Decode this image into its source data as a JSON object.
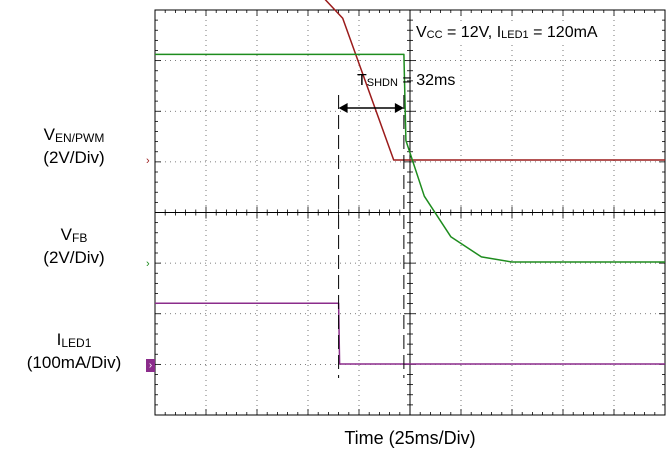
{
  "chart_data": {
    "type": "line",
    "xlabel": "Time (25ms/Div)",
    "x_scale": {
      "unit": "ms",
      "per_div": 25,
      "divisions": 10
    },
    "conditions_text": {
      "vcc_main": "V",
      "vcc_sub": "CC",
      "vcc_value": " = 12V, I",
      "iled_sub": "LED1",
      "iled_value": " = 120mA"
    },
    "annotation": {
      "main": "T",
      "sub": "SHDN",
      "value": " = 32ms",
      "duration_ms": 32
    },
    "channels": [
      {
        "id": "ven",
        "label_main": "V",
        "label_sub": "EN/PWM",
        "scale": "(2V/Div)",
        "color": "#9b1b1b",
        "points_ms": [
          [
            0,
            5.0
          ],
          [
            41,
            5.0
          ],
          [
            92,
            2.8
          ],
          [
            117,
            0.0
          ],
          [
            250,
            0.0
          ]
        ],
        "unit": "div"
      },
      {
        "id": "vfb",
        "label_main": "V",
        "label_sub": "FB",
        "scale": "(2V/Div)",
        "color": "#1e8c1e",
        "points_ms": [
          [
            0,
            4.1
          ],
          [
            122,
            4.1
          ],
          [
            123,
            2.4
          ],
          [
            132,
            1.3
          ],
          [
            145,
            0.5
          ],
          [
            160,
            0.1
          ],
          [
            175,
            0.0
          ],
          [
            250,
            0.0
          ]
        ],
        "unit": "div"
      },
      {
        "id": "iled",
        "label_main": "I",
        "label_sub": "LED1",
        "scale": "(100mA/Div)",
        "color": "#8b2c8b",
        "points_ms": [
          [
            0,
            1.2
          ],
          [
            90,
            1.2
          ],
          [
            90.5,
            0.0
          ],
          [
            250,
            0.0
          ]
        ],
        "unit": "div"
      }
    ],
    "cursors_ms": [
      90,
      122
    ],
    "grid": true
  }
}
